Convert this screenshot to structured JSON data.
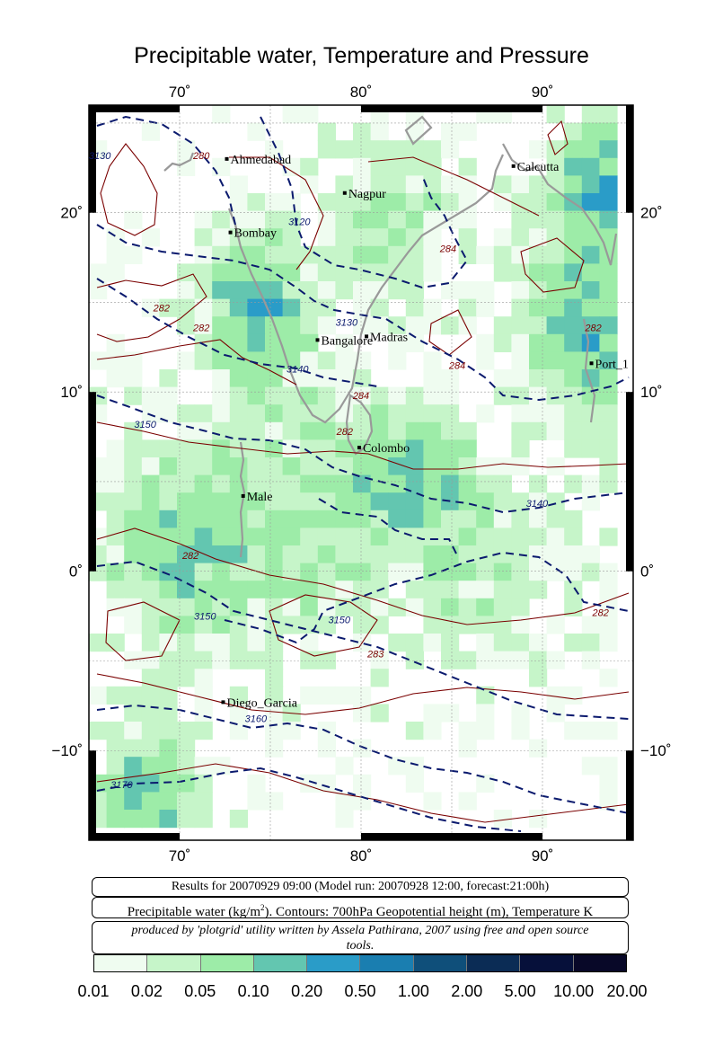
{
  "title": "Precipitable water, Temperature and Pressure",
  "map": {
    "lon_range": [
      65,
      95
    ],
    "lat_range": [
      -15,
      26
    ],
    "lon_ticks": [
      {
        "value": 70,
        "label": "70˚"
      },
      {
        "value": 80,
        "label": "80˚"
      },
      {
        "value": 90,
        "label": "90˚"
      }
    ],
    "lat_ticks": [
      {
        "value": 20,
        "label": "20˚"
      },
      {
        "value": 10,
        "label": "10˚"
      },
      {
        "value": 0,
        "label": "0˚"
      },
      {
        "value": -10,
        "label": "−10˚"
      }
    ],
    "cities": [
      {
        "name": "Ahmedabad",
        "lon": 72.6,
        "lat": 23.0
      },
      {
        "name": "Nagpur",
        "lon": 79.1,
        "lat": 21.1
      },
      {
        "name": "Calcutta",
        "lon": 88.4,
        "lat": 22.6
      },
      {
        "name": "Bombay",
        "lon": 72.8,
        "lat": 18.9
      },
      {
        "name": "Bangalore",
        "lon": 77.6,
        "lat": 12.9
      },
      {
        "name": "Madras",
        "lon": 80.3,
        "lat": 13.1
      },
      {
        "name": "Port_1",
        "lon": 92.7,
        "lat": 11.6
      },
      {
        "name": "Colombo",
        "lon": 79.9,
        "lat": 6.9
      },
      {
        "name": "Male",
        "lon": 73.5,
        "lat": 4.2
      },
      {
        "name": "Diego_Garcia",
        "lon": 72.4,
        "lat": -7.3
      }
    ],
    "contour_labels": [
      {
        "text": "3130",
        "lon": 65.6,
        "lat": 23.0,
        "kind": "height"
      },
      {
        "text": "280",
        "lon": 71.2,
        "lat": 23.0,
        "kind": "temperature"
      },
      {
        "text": "3120",
        "lon": 76.6,
        "lat": 19.3,
        "kind": "height"
      },
      {
        "text": "284",
        "lon": 84.8,
        "lat": 17.8,
        "kind": "temperature"
      },
      {
        "text": "282",
        "lon": 69.0,
        "lat": 14.5,
        "kind": "temperature"
      },
      {
        "text": "282",
        "lon": 71.2,
        "lat": 13.4,
        "kind": "temperature"
      },
      {
        "text": "3130",
        "lon": 79.2,
        "lat": 13.7,
        "kind": "height"
      },
      {
        "text": "3140",
        "lon": 76.5,
        "lat": 11.1,
        "kind": "height"
      },
      {
        "text": "284",
        "lon": 85.3,
        "lat": 11.3,
        "kind": "temperature"
      },
      {
        "text": "282",
        "lon": 92.8,
        "lat": 13.4,
        "kind": "temperature"
      },
      {
        "text": "284",
        "lon": 80.0,
        "lat": 9.6,
        "kind": "temperature"
      },
      {
        "text": "3150",
        "lon": 68.1,
        "lat": 8.0,
        "kind": "height"
      },
      {
        "text": "282",
        "lon": 79.1,
        "lat": 7.6,
        "kind": "temperature"
      },
      {
        "text": "3140",
        "lon": 89.7,
        "lat": 3.6,
        "kind": "height"
      },
      {
        "text": "282",
        "lon": 70.6,
        "lat": 0.7,
        "kind": "temperature"
      },
      {
        "text": "3150",
        "lon": 71.4,
        "lat": -2.7,
        "kind": "height"
      },
      {
        "text": "3150",
        "lon": 78.8,
        "lat": -2.9,
        "kind": "height"
      },
      {
        "text": "282",
        "lon": 93.2,
        "lat": -2.5,
        "kind": "temperature"
      },
      {
        "text": "283",
        "lon": 80.8,
        "lat": -4.8,
        "kind": "temperature"
      },
      {
        "text": "3160",
        "lon": 74.2,
        "lat": -8.4,
        "kind": "height"
      },
      {
        "text": "3170",
        "lon": 66.8,
        "lat": -12.1,
        "kind": "height"
      }
    ]
  },
  "info": {
    "results": "Results for 20070929 09:00 (Model run: 20070928 12:00, forecast:21:00h)",
    "legend_prefix": "Precipitable water (kg/m",
    "legend_sup": "2",
    "legend_suffix": ").  Contours: 700hPa Geopotential height (m), Temperature K",
    "credit": "produced by 'plotgrid' utility written by Assela Pathirana, 2007 using free and open source tools."
  },
  "colorbar": {
    "colors": [
      "#effcf0",
      "#c6f5c9",
      "#9deca8",
      "#63c6b0",
      "#2a9cc8",
      "#1a7eb0",
      "#0f4f7a",
      "#0b2c55",
      "#06103a",
      "#080828"
    ],
    "labels": [
      "0.01",
      "0.02",
      "0.05",
      "0.10",
      "0.20",
      "0.50",
      "1.00",
      "2.00",
      "5.00",
      "10.00",
      "20.00"
    ]
  }
}
